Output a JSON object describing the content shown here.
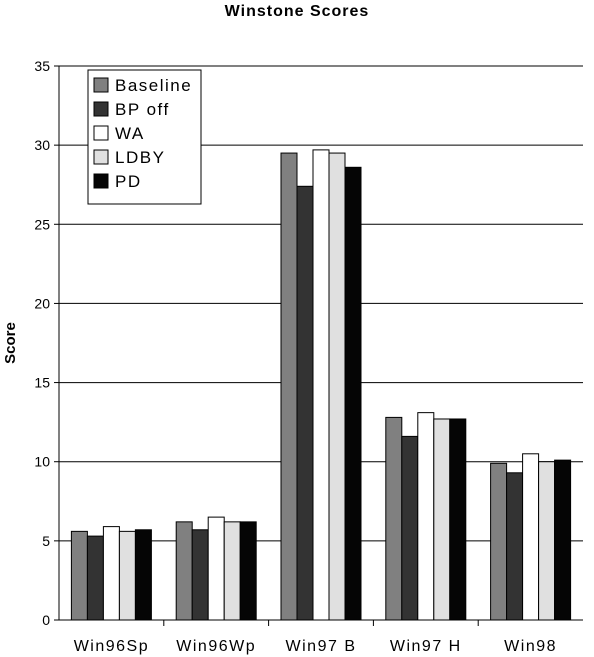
{
  "chart_data": {
    "type": "bar",
    "title": "Winstone Scores",
    "ylabel": "Score",
    "xlabel": "",
    "ylim": [
      0,
      35
    ],
    "yticks": [
      0,
      5,
      10,
      15,
      20,
      25,
      30,
      35
    ],
    "grid": true,
    "legend_position": "top-left",
    "categories": [
      "Win96Sp",
      "Win96Wp",
      "Win97 B",
      "Win97 H",
      "Win98"
    ],
    "series": [
      {
        "name": "Baseline",
        "color": "#808080",
        "values": [
          5.6,
          6.2,
          29.5,
          12.8,
          9.9
        ]
      },
      {
        "name": "BP off",
        "color": "#333333",
        "values": [
          5.3,
          5.7,
          27.4,
          11.6,
          9.3
        ]
      },
      {
        "name": "WA",
        "color": "#ffffff",
        "values": [
          5.9,
          6.5,
          29.7,
          13.1,
          10.5
        ]
      },
      {
        "name": "LDBY",
        "color": "#e0e0e0",
        "values": [
          5.6,
          6.2,
          29.5,
          12.7,
          10.0
        ]
      },
      {
        "name": "PD",
        "color": "#050505",
        "values": [
          5.7,
          6.2,
          28.6,
          12.7,
          10.1
        ]
      }
    ]
  }
}
